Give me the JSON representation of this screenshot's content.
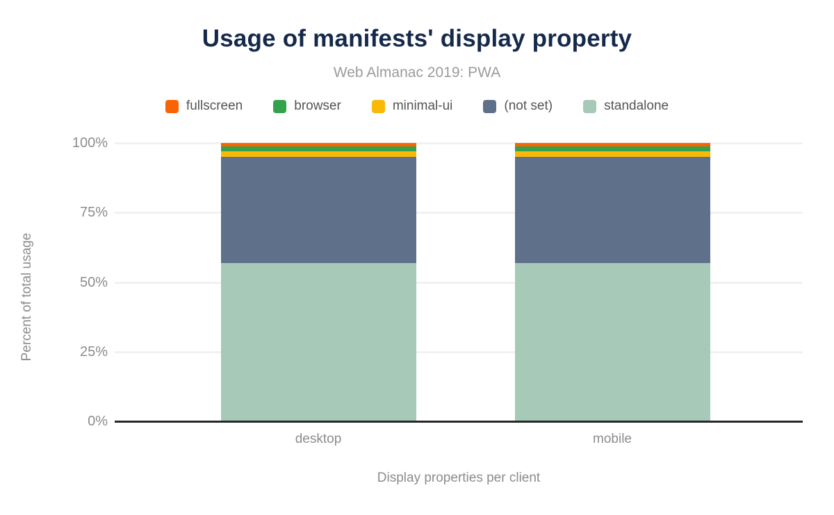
{
  "header": {
    "title": "Usage of manifests' display property",
    "subtitle": "Web Almanac 2019: PWA"
  },
  "chart_data": {
    "type": "bar",
    "stacked": true,
    "title": "Usage of manifests' display property",
    "subtitle": "Web Almanac 2019: PWA",
    "xlabel": "Display properties per client",
    "ylabel": "Percent of total usage",
    "categories": [
      "desktop",
      "mobile"
    ],
    "series": [
      {
        "name": "fullscreen",
        "color": "#f96302",
        "values": [
          1.2,
          1.2
        ]
      },
      {
        "name": "browser",
        "color": "#34a24d",
        "values": [
          1.8,
          1.8
        ]
      },
      {
        "name": "minimal-ui",
        "color": "#fab906",
        "values": [
          1.9,
          1.9
        ]
      },
      {
        "name": "(not set)",
        "color": "#5f708a",
        "values": [
          38.3,
          38.3
        ]
      },
      {
        "name": "standalone",
        "color": "#a6c9b8",
        "values": [
          56.9,
          57.0
        ]
      }
    ],
    "ylim": [
      0,
      100
    ],
    "yticks": [
      0,
      25,
      50,
      75,
      100
    ],
    "ytick_suffix": "%",
    "legend_position": "top",
    "grid": true
  },
  "colors": {
    "title_text": "#15294b",
    "subtitle_text": "#9b9b9b",
    "axis_text": "#8c8c8c",
    "legend_text": "#555555",
    "gridline": "#f1f1f1",
    "axis_line": "#262626",
    "background": "#ffffff"
  }
}
